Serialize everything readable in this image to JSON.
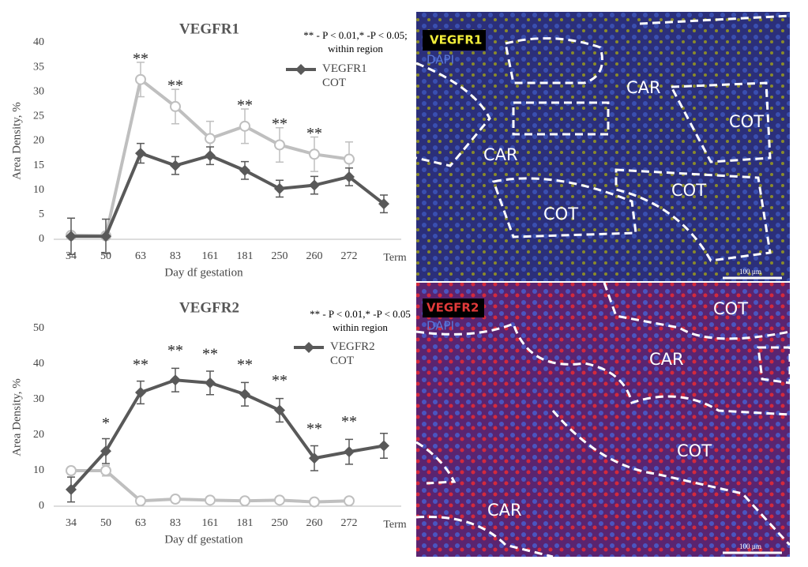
{
  "chart_data": [
    {
      "type": "line",
      "title": "VEGFR1",
      "x_label": "Day df gestation",
      "y_label": "Area Density, %",
      "note": [
        "** - P < 0.01,* -P < 0.05;",
        "within region"
      ],
      "categories": [
        "34",
        "50",
        "63",
        "83",
        "161",
        "181",
        "250",
        "260",
        "272",
        "Term"
      ],
      "ylim": [
        0,
        40
      ],
      "yticks": [
        0,
        5,
        10,
        15,
        20,
        25,
        30,
        35,
        40
      ],
      "series": [
        {
          "name": "VEGFR1 COT",
          "color": "#595959",
          "marker": "diamond",
          "values": [
            0.6,
            0.6,
            17.5,
            15,
            17,
            14,
            10.3,
            11,
            12.7,
            7.2
          ],
          "errors": [
            3.7,
            3.5,
            2,
            1.8,
            1.8,
            1.8,
            1.7,
            1.8,
            1.8,
            1.8
          ]
        },
        {
          "color": "#bfbfbf",
          "marker": "circle",
          "values": [
            0.8,
            0.7,
            32.5,
            27,
            20.5,
            23,
            19.2,
            17.3,
            16.3,
            null
          ],
          "errors": [
            0.5,
            0.5,
            3.5,
            3.5,
            3.5,
            3.5,
            3.5,
            3.5,
            3.5,
            null
          ]
        }
      ],
      "annotations": [
        {
          "text": "**",
          "x": "63",
          "y": 36.5
        },
        {
          "text": "**",
          "x": "83",
          "y": 31
        },
        {
          "text": "**",
          "x": "181",
          "y": 27
        },
        {
          "text": "**",
          "x": "250",
          "y": 23.2
        },
        {
          "text": "**",
          "x": "260",
          "y": 21.3
        }
      ]
    },
    {
      "type": "line",
      "title": "VEGFR2",
      "x_label": "Day df gestation",
      "y_label": "Area Density, %",
      "note": [
        "** - P < 0.01,* -P < 0.05",
        "within region"
      ],
      "categories": [
        "34",
        "50",
        "63",
        "83",
        "161",
        "181",
        "250",
        "260",
        "272",
        "Term"
      ],
      "ylim": [
        0,
        50
      ],
      "yticks": [
        0,
        10,
        20,
        30,
        40,
        50
      ],
      "series": [
        {
          "name": "VEGFR2 COT",
          "color": "#595959",
          "marker": "diamond",
          "values": [
            4.7,
            15.5,
            32,
            35.5,
            34.7,
            31.5,
            27,
            13.5,
            15.3,
            17
          ],
          "errors": [
            3.5,
            3.5,
            3.2,
            3.3,
            3.3,
            3.3,
            3.3,
            3.5,
            3.5,
            3.5
          ]
        },
        {
          "color": "#bfbfbf",
          "marker": "circle",
          "values": [
            10,
            10,
            1.5,
            2,
            1.7,
            1.5,
            1.7,
            1.2,
            1.5,
            null
          ],
          "errors": [
            1,
            1.5,
            0.8,
            0.8,
            0.8,
            0.8,
            0.8,
            0.8,
            0.8,
            null
          ]
        }
      ],
      "annotations": [
        {
          "text": "*",
          "x": "50",
          "y": 23
        },
        {
          "text": "**",
          "x": "63",
          "y": 39.5
        },
        {
          "text": "**",
          "x": "83",
          "y": 43.5
        },
        {
          "text": "**",
          "x": "161",
          "y": 42.5
        },
        {
          "text": "**",
          "x": "181",
          "y": 39.5
        },
        {
          "text": "**",
          "x": "250",
          "y": 35
        },
        {
          "text": "**",
          "x": "260",
          "y": 21.5
        },
        {
          "text": "**",
          "x": "272",
          "y": 23.5
        }
      ]
    }
  ],
  "images": [
    {
      "stain": "VEGFR1",
      "counterstain": "DAPI",
      "regions": [
        "CAR",
        "CAR",
        "COT",
        "COT",
        "COT"
      ],
      "scale": "100 µm"
    },
    {
      "stain": "VEGFR2",
      "counterstain": "DAPI",
      "regions": [
        "COT",
        "CAR",
        "COT",
        "CAR"
      ],
      "scale": "100 µm"
    }
  ]
}
